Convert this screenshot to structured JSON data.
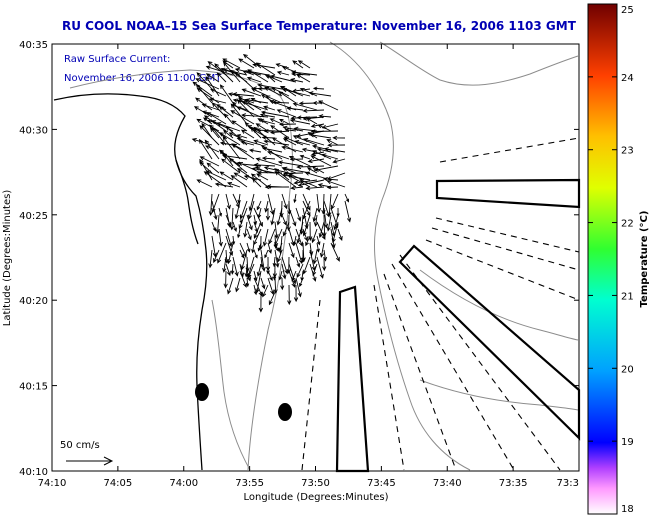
{
  "chart_data": {
    "type": "vector-map",
    "title": "RU COOL  NOAA–15  Sea Surface Temperature:  November 16, 2006 1103 GMT",
    "annotation_lines": [
      "Raw Surface Current:",
      "November 16, 2006 11:00 GMT"
    ],
    "xlabel": "Longitude (Degrees:Minutes)",
    "ylabel": "Latitude (Degrees:Minutes)",
    "x_ticks": [
      "74:10",
      "74:05",
      "74:00",
      "73:55",
      "73:50",
      "73:45",
      "73:40",
      "73:35",
      "73:3"
    ],
    "y_ticks": [
      "40:35",
      "40:30",
      "40:25",
      "40:20",
      "40:15",
      "40:10"
    ],
    "xlim_deg_west": [
      74.1667,
      73.5
    ],
    "ylim_deg_north": [
      40.1667,
      40.5833
    ],
    "scale_label": "50 cm/s",
    "colorbar": {
      "label": "Temperature (°C)",
      "ticks": [
        18,
        19,
        20,
        21,
        22,
        23,
        24,
        25
      ],
      "range": [
        18,
        25
      ]
    },
    "colors": {
      "title_text": "#0000b4",
      "coast": "#000000",
      "bathymetry": "#8c8c8c"
    }
  }
}
